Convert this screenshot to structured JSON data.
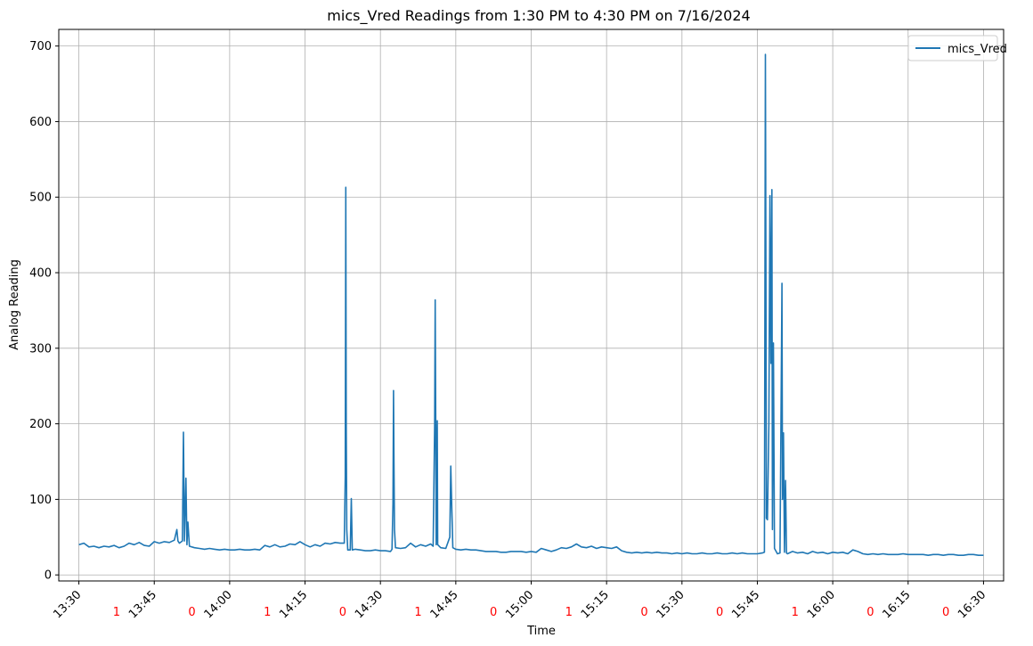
{
  "chart_data": {
    "type": "line",
    "title": "mics_Vred Readings from 1:30 PM to 4:30 PM on 7/16/2024",
    "xlabel": "Time",
    "ylabel": "Analog Reading",
    "x_unit": "minutes past 13:30",
    "xlim": [
      -4,
      184
    ],
    "ylim": [
      -8,
      722
    ],
    "x_ticks": [
      "13:30",
      "13:45",
      "14:00",
      "14:15",
      "14:30",
      "14:45",
      "15:00",
      "15:15",
      "15:30",
      "15:45",
      "16:00",
      "16:15",
      "16:30"
    ],
    "y_ticks": [
      "0",
      "100",
      "200",
      "300",
      "400",
      "500",
      "600",
      "700"
    ],
    "grid": true,
    "legend": {
      "position": "top-right",
      "entries": [
        "mics_Vred"
      ]
    },
    "segment_labels": {
      "color": "#ff0000",
      "labels": [
        "1",
        "0",
        "1",
        "0",
        "1",
        "0",
        "1",
        "0",
        "0",
        "1",
        "0",
        "0"
      ]
    },
    "series": [
      {
        "name": "mics_Vred",
        "color": "#1f77b4",
        "points": [
          [
            0,
            40
          ],
          [
            1,
            42
          ],
          [
            2,
            37
          ],
          [
            3,
            38
          ],
          [
            4,
            36
          ],
          [
            5,
            38
          ],
          [
            6,
            37
          ],
          [
            7,
            39
          ],
          [
            8,
            36
          ],
          [
            9,
            38
          ],
          [
            10,
            42
          ],
          [
            11,
            40
          ],
          [
            12,
            43
          ],
          [
            13,
            39
          ],
          [
            14,
            38
          ],
          [
            15,
            44
          ],
          [
            16,
            42
          ],
          [
            17,
            44
          ],
          [
            18,
            43
          ],
          [
            19,
            46
          ],
          [
            19.5,
            60
          ],
          [
            19.7,
            45
          ],
          [
            20,
            42
          ],
          [
            20.6,
            45
          ],
          [
            20.8,
            189
          ],
          [
            21,
            45
          ],
          [
            21.3,
            128
          ],
          [
            21.5,
            40
          ],
          [
            21.7,
            70
          ],
          [
            22,
            38
          ],
          [
            23,
            36
          ],
          [
            24,
            35
          ],
          [
            25,
            34
          ],
          [
            26,
            35
          ],
          [
            27,
            34
          ],
          [
            28,
            33
          ],
          [
            29,
            34
          ],
          [
            30,
            33
          ],
          [
            31,
            33
          ],
          [
            32,
            34
          ],
          [
            33,
            33
          ],
          [
            34,
            33
          ],
          [
            35,
            34
          ],
          [
            36,
            33
          ],
          [
            37,
            39
          ],
          [
            38,
            37
          ],
          [
            39,
            40
          ],
          [
            40,
            37
          ],
          [
            41,
            38
          ],
          [
            42,
            41
          ],
          [
            43,
            40
          ],
          [
            44,
            44
          ],
          [
            45,
            40
          ],
          [
            46,
            37
          ],
          [
            47,
            40
          ],
          [
            48,
            38
          ],
          [
            49,
            42
          ],
          [
            50,
            41
          ],
          [
            51,
            43
          ],
          [
            52,
            42
          ],
          [
            52.8,
            42
          ],
          [
            53,
            130
          ],
          [
            53.1,
            513
          ],
          [
            53.2,
            200
          ],
          [
            53.3,
            60
          ],
          [
            53.5,
            33
          ],
          [
            54,
            33
          ],
          [
            54.2,
            101
          ],
          [
            54.4,
            33
          ],
          [
            55,
            34
          ],
          [
            56,
            33
          ],
          [
            57,
            32
          ],
          [
            58,
            32
          ],
          [
            59,
            33
          ],
          [
            60,
            32
          ],
          [
            61,
            32
          ],
          [
            62,
            31
          ],
          [
            62.3,
            34
          ],
          [
            62.5,
            95
          ],
          [
            62.6,
            244
          ],
          [
            62.7,
            150
          ],
          [
            62.8,
            60
          ],
          [
            63,
            36
          ],
          [
            64,
            35
          ],
          [
            65,
            36
          ],
          [
            66,
            42
          ],
          [
            67,
            37
          ],
          [
            68,
            40
          ],
          [
            69,
            38
          ],
          [
            70,
            41
          ],
          [
            70.5,
            38
          ],
          [
            70.8,
            200
          ],
          [
            70.9,
            364
          ],
          [
            71,
            200
          ],
          [
            71.1,
            40
          ],
          [
            71.3,
            204
          ],
          [
            71.4,
            40
          ],
          [
            72,
            36
          ],
          [
            73,
            35
          ],
          [
            73.8,
            50
          ],
          [
            74,
            144
          ],
          [
            74.2,
            90
          ],
          [
            74.4,
            36
          ],
          [
            75,
            34
          ],
          [
            76,
            33
          ],
          [
            77,
            34
          ],
          [
            78,
            33
          ],
          [
            79,
            33
          ],
          [
            80,
            32
          ],
          [
            81,
            31
          ],
          [
            82,
            31
          ],
          [
            83,
            31
          ],
          [
            84,
            30
          ],
          [
            85,
            30
          ],
          [
            86,
            31
          ],
          [
            87,
            31
          ],
          [
            88,
            31
          ],
          [
            89,
            30
          ],
          [
            90,
            31
          ],
          [
            91,
            30
          ],
          [
            92,
            35
          ],
          [
            93,
            33
          ],
          [
            94,
            31
          ],
          [
            95,
            33
          ],
          [
            96,
            36
          ],
          [
            97,
            35
          ],
          [
            98,
            37
          ],
          [
            99,
            41
          ],
          [
            100,
            37
          ],
          [
            101,
            36
          ],
          [
            102,
            38
          ],
          [
            103,
            35
          ],
          [
            104,
            37
          ],
          [
            105,
            36
          ],
          [
            106,
            35
          ],
          [
            107,
            37
          ],
          [
            108,
            32
          ],
          [
            109,
            30
          ],
          [
            110,
            29
          ],
          [
            111,
            30
          ],
          [
            112,
            29
          ],
          [
            113,
            30
          ],
          [
            114,
            29
          ],
          [
            115,
            30
          ],
          [
            116,
            29
          ],
          [
            117,
            29
          ],
          [
            118,
            28
          ],
          [
            119,
            29
          ],
          [
            120,
            28
          ],
          [
            121,
            29
          ],
          [
            122,
            28
          ],
          [
            123,
            28
          ],
          [
            124,
            29
          ],
          [
            125,
            28
          ],
          [
            126,
            28
          ],
          [
            127,
            29
          ],
          [
            128,
            28
          ],
          [
            129,
            28
          ],
          [
            130,
            29
          ],
          [
            131,
            28
          ],
          [
            132,
            29
          ],
          [
            133,
            28
          ],
          [
            134,
            28
          ],
          [
            135,
            28
          ],
          [
            136,
            29
          ],
          [
            136.4,
            30
          ],
          [
            136.5,
            330
          ],
          [
            136.6,
            689
          ],
          [
            136.7,
            400
          ],
          [
            136.8,
            75
          ],
          [
            137,
            73
          ],
          [
            137.3,
            200
          ],
          [
            137.5,
            502
          ],
          [
            137.7,
            280
          ],
          [
            137.9,
            510
          ],
          [
            138,
            60
          ],
          [
            138.2,
            307
          ],
          [
            138.4,
            35
          ],
          [
            139,
            28
          ],
          [
            139.5,
            29
          ],
          [
            139.8,
            300
          ],
          [
            139.9,
            386
          ],
          [
            140,
            100
          ],
          [
            140.2,
            188
          ],
          [
            140.4,
            30
          ],
          [
            140.6,
            125
          ],
          [
            140.8,
            29
          ],
          [
            141,
            28
          ],
          [
            142,
            31
          ],
          [
            143,
            29
          ],
          [
            144,
            30
          ],
          [
            145,
            28
          ],
          [
            146,
            31
          ],
          [
            147,
            29
          ],
          [
            148,
            30
          ],
          [
            149,
            28
          ],
          [
            150,
            30
          ],
          [
            151,
            29
          ],
          [
            152,
            30
          ],
          [
            153,
            28
          ],
          [
            154,
            33
          ],
          [
            155,
            31
          ],
          [
            156,
            28
          ],
          [
            157,
            27
          ],
          [
            158,
            28
          ],
          [
            159,
            27
          ],
          [
            160,
            28
          ],
          [
            161,
            27
          ],
          [
            162,
            27
          ],
          [
            163,
            27
          ],
          [
            164,
            28
          ],
          [
            165,
            27
          ],
          [
            166,
            27
          ],
          [
            167,
            27
          ],
          [
            168,
            27
          ],
          [
            169,
            26
          ],
          [
            170,
            27
          ],
          [
            171,
            27
          ],
          [
            172,
            26
          ],
          [
            173,
            27
          ],
          [
            174,
            27
          ],
          [
            175,
            26
          ],
          [
            176,
            26
          ],
          [
            177,
            27
          ],
          [
            178,
            27
          ],
          [
            179,
            26
          ],
          [
            180,
            26
          ]
        ]
      }
    ]
  }
}
